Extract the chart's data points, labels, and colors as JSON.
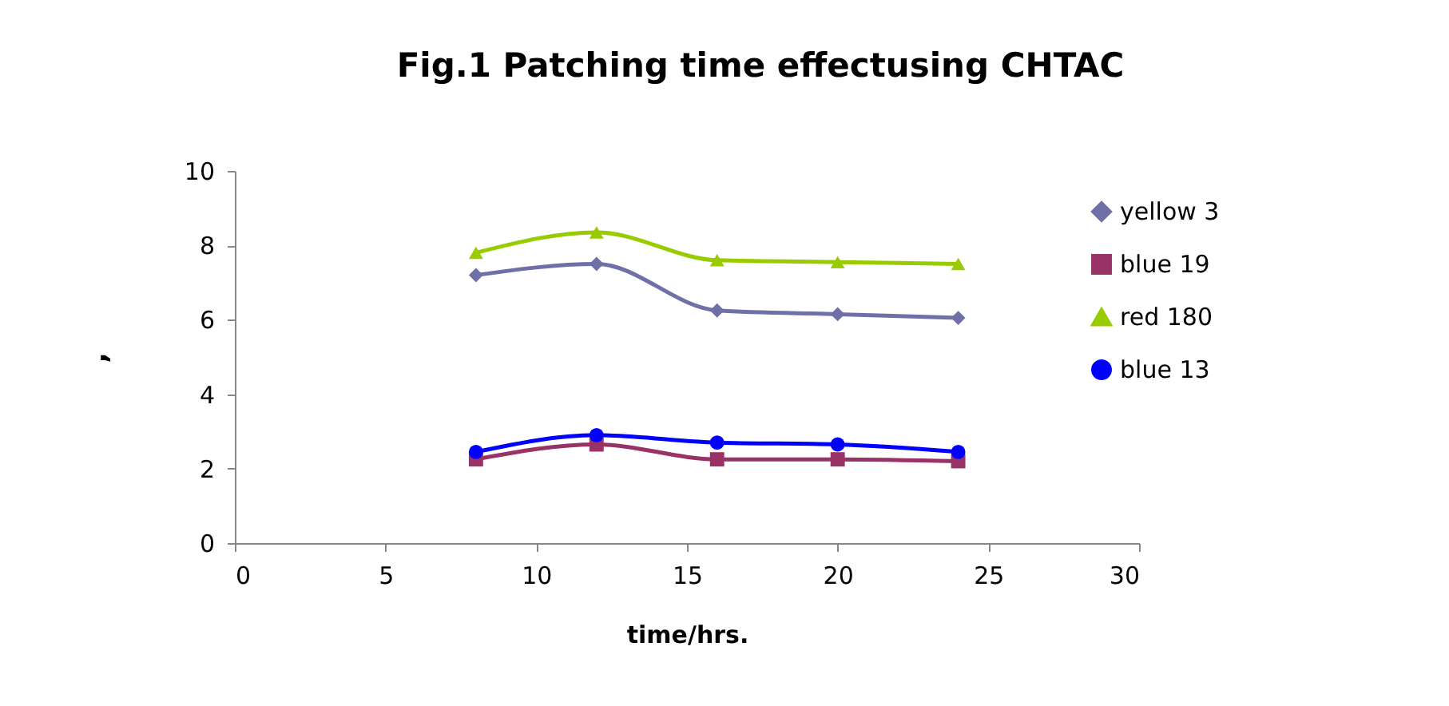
{
  "chart_data": {
    "type": "line",
    "title": "Fig.1 Patching time effectusing CHTAC",
    "xlabel": "time/hrs.",
    "ylabel": ",",
    "x": [
      8,
      12,
      16,
      20,
      24
    ],
    "series": [
      {
        "name": "yellow 3",
        "color": "#7070a8",
        "marker": "diamond",
        "values": [
          7.2,
          7.5,
          6.25,
          6.15,
          6.05
        ]
      },
      {
        "name": "blue 19",
        "color": "#993366",
        "marker": "square",
        "values": [
          2.25,
          2.65,
          2.25,
          2.25,
          2.2
        ]
      },
      {
        "name": "red 180",
        "color": "#99cc00",
        "marker": "triangle",
        "values": [
          7.8,
          8.35,
          7.6,
          7.55,
          7.5
        ]
      },
      {
        "name": "blue 13",
        "color": "#0000ff",
        "marker": "circle",
        "values": [
          2.45,
          2.9,
          2.7,
          2.65,
          2.45
        ]
      }
    ],
    "xlim": [
      0,
      30
    ],
    "xticks": [
      0,
      5,
      10,
      15,
      20,
      25,
      30
    ],
    "ylim": [
      0,
      10
    ],
    "yticks": [
      0,
      2,
      4,
      6,
      8,
      10
    ],
    "grid": false,
    "legend": "right"
  }
}
